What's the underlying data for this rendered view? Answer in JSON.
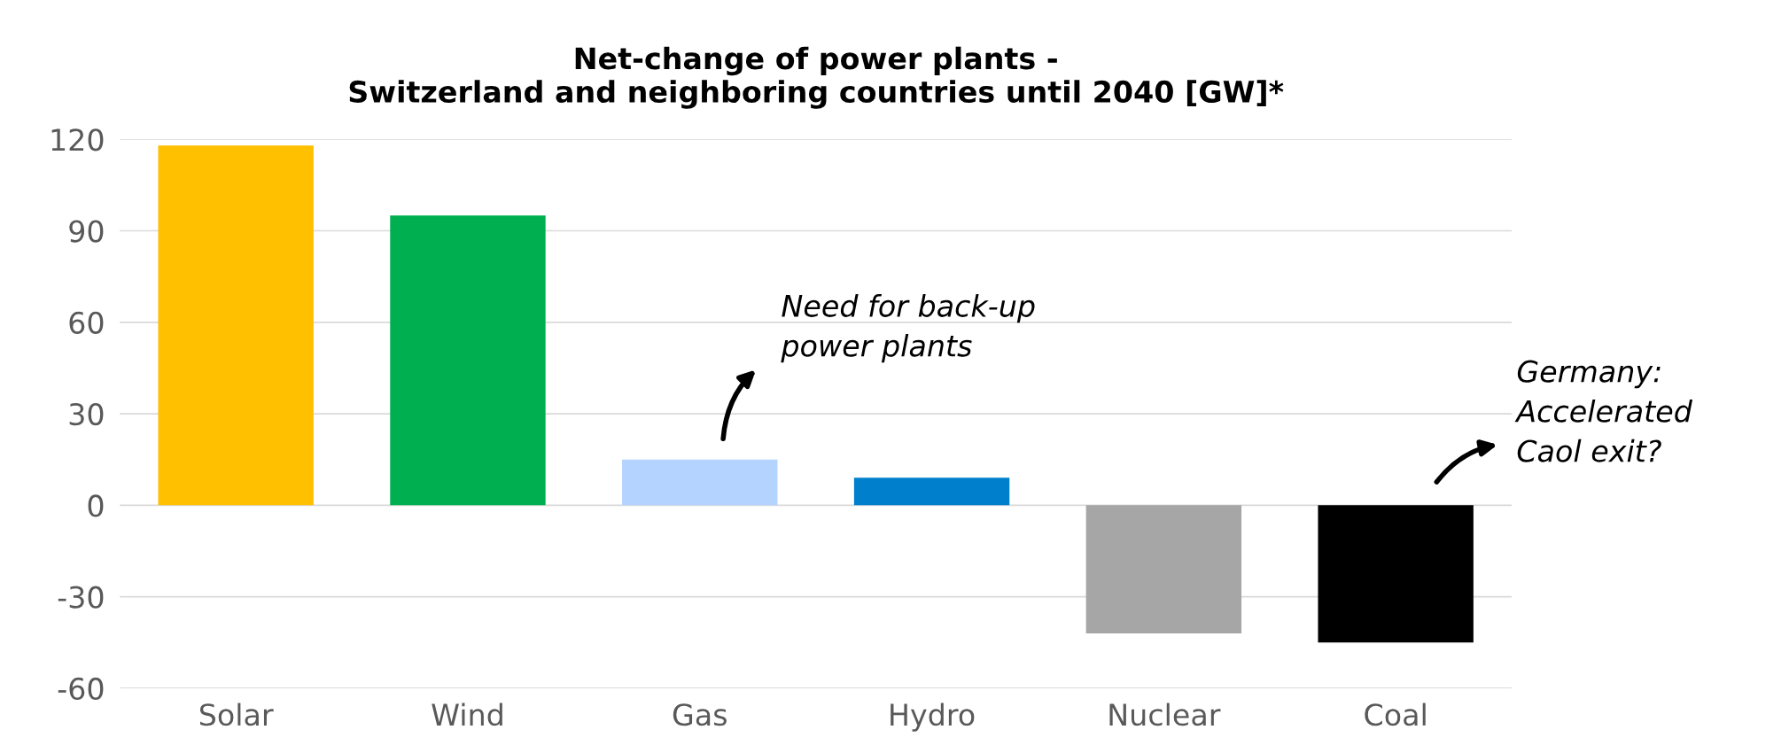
{
  "chart_data": {
    "type": "bar",
    "title": "Net-change of power plants -\nSwitzerland and neighboring countries until 2040 [GW]*",
    "categories": [
      "Solar",
      "Wind",
      "Gas",
      "Hydro",
      "Nuclear",
      "Coal"
    ],
    "values": [
      118,
      95,
      15,
      9,
      -42,
      -45
    ],
    "colors": [
      "#ffc000",
      "#00b050",
      "#b4d3ff",
      "#0080cc",
      "#a6a6a6",
      "#000000"
    ],
    "ylim": [
      -60,
      120
    ],
    "yticks": [
      -60,
      -30,
      0,
      30,
      60,
      90,
      120
    ],
    "grid": "y",
    "legend": false,
    "annotations": [
      "Need for back-up\npower plants",
      "Germany:\nAccelerated\nCaol exit?"
    ]
  }
}
